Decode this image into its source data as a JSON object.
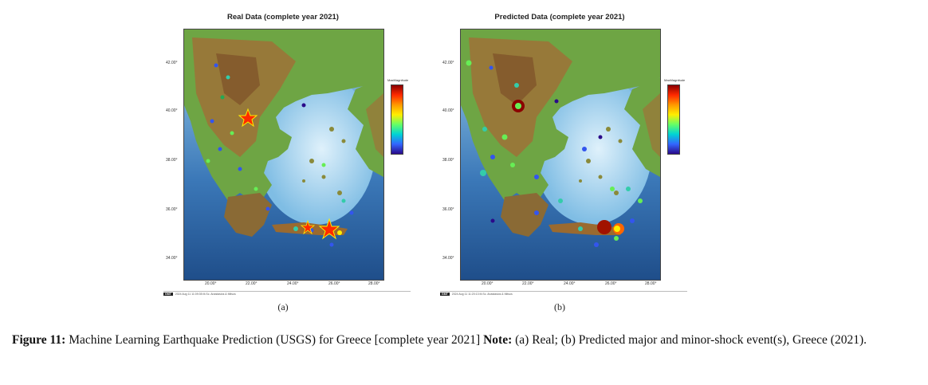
{
  "panels": [
    {
      "title": "Real Data (complete year 2021)",
      "sublabel": "(a)",
      "footer_badge": "GMT",
      "footer_text": "2024 Aug 11 11:09:35   M.Sc. Anastasios & Mitsos",
      "colorbar_label": "MaxMagnitude"
    },
    {
      "title": "Predicted Data (complete year 2021)",
      "sublabel": "(b)",
      "footer_badge": "GMT",
      "footer_text": "2024 Aug 11 11:20:13   M.Sc. Anastasios & Mitsos",
      "colorbar_label": "MaxMagnitude"
    }
  ],
  "axes": {
    "lat_ticks": [
      "42.00°",
      "40.00°",
      "38.00°",
      "36.00°",
      "34.00°"
    ],
    "lon_ticks": [
      "20.00°",
      "22.00°",
      "24.00°",
      "26.00°",
      "28.00°"
    ]
  },
  "caption": {
    "label": "Figure 11:",
    "text": " Machine Learning Earthquake Prediction (USGS) for Greece [complete year 2021] ",
    "note_label": "Note:",
    "note_text": " (a) Real; (b) Predicted major and minor-shock event(s), Greece (2021)."
  },
  "colors": {
    "sea_deep": "#1f4e8a",
    "sea_shallow": "#bfe3f5",
    "land_low": "#5e9e3a",
    "land_high": "#9a5a2c"
  }
}
